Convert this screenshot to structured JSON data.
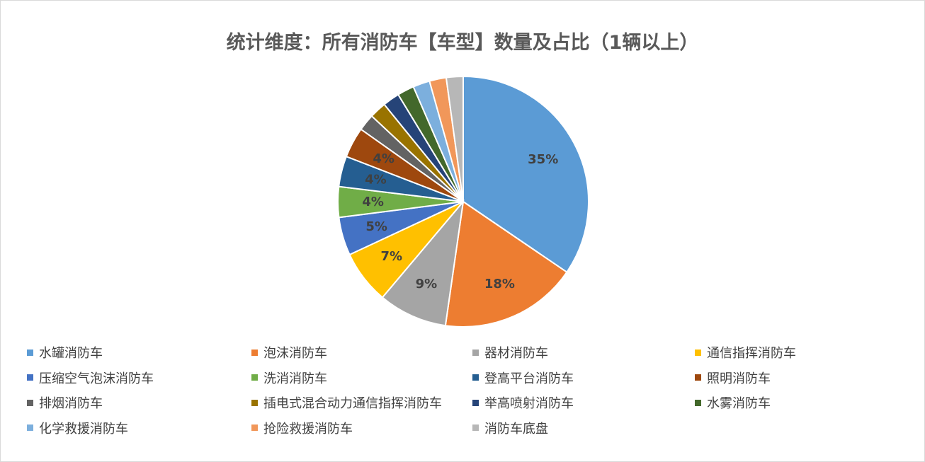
{
  "chart_data": {
    "type": "pie",
    "title": "统计维度：所有消防车【车型】数量及占比（1辆以上）",
    "legend_position": "bottom",
    "slices": [
      {
        "name": "水罐消防车",
        "value": 35,
        "label": "35%",
        "color": "#5B9BD5"
      },
      {
        "name": "泡沫消防车",
        "value": 18,
        "label": "18%",
        "color": "#ED7D31"
      },
      {
        "name": "器材消防车",
        "value": 9,
        "label": "9%",
        "color": "#A5A5A5"
      },
      {
        "name": "通信指挥消防车",
        "value": 7,
        "label": "7%",
        "color": "#FFC000"
      },
      {
        "name": "压缩空气泡沫消防车",
        "value": 5,
        "label": "5%",
        "color": "#4472C4"
      },
      {
        "name": "洗消消防车",
        "value": 4,
        "label": "4%",
        "color": "#70AD47"
      },
      {
        "name": "登高平台消防车",
        "value": 4,
        "label": "4%",
        "color": "#255E91"
      },
      {
        "name": "照明消防车",
        "value": 4,
        "label": "4%",
        "color": "#9E480E"
      },
      {
        "name": "排烟消防车",
        "value": 2.2,
        "label": "",
        "color": "#636363"
      },
      {
        "name": "插电式混合动力通信指挥消防车",
        "value": 2.2,
        "label": "",
        "color": "#997300"
      },
      {
        "name": "举高喷射消防车",
        "value": 2.2,
        "label": "",
        "color": "#264478"
      },
      {
        "name": "水雾消防车",
        "value": 2.2,
        "label": "",
        "color": "#43682B"
      },
      {
        "name": "化学救援消防车",
        "value": 2.2,
        "label": "",
        "color": "#7CAFDD"
      },
      {
        "name": "抢险救援消防车",
        "value": 2.2,
        "label": "",
        "color": "#F1975A"
      },
      {
        "name": "消防车底盘",
        "value": 2.2,
        "label": "",
        "color": "#B7B7B7"
      }
    ]
  }
}
